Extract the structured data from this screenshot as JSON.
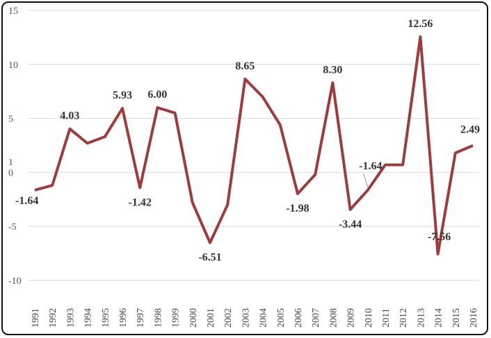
{
  "chart_data": {
    "type": "line",
    "title": "",
    "xlabel": "",
    "ylabel": "",
    "ylim": [
      -10,
      15
    ],
    "y_ticks": [
      "15",
      "10",
      "5",
      "1",
      "0",
      "-5",
      "-10"
    ],
    "grid": true,
    "legend": "none",
    "x": [
      "1991",
      "1992",
      "1993",
      "1994",
      "1995",
      "1996",
      "1997",
      "1998",
      "1999",
      "2000",
      "2001",
      "2002",
      "2003",
      "2004",
      "2005",
      "2006",
      "2007",
      "2008",
      "2009",
      "2010",
      "2011",
      "2012",
      "2013",
      "2014",
      "2015",
      "2016"
    ],
    "series": [
      {
        "values": [
          -1.64,
          -1.2,
          4.03,
          2.7,
          3.3,
          5.93,
          -1.42,
          6.0,
          5.5,
          -2.8,
          -6.51,
          -3.0,
          8.65,
          7.0,
          4.4,
          -1.98,
          -0.2,
          8.3,
          -3.44,
          -1.64,
          0.7,
          0.7,
          12.56,
          -7.56,
          1.8,
          2.49
        ],
        "color": "#9e3b3b"
      }
    ],
    "data_labels": [
      {
        "index": 0,
        "text": "-1.64"
      },
      {
        "index": 2,
        "text": "4.03"
      },
      {
        "index": 5,
        "text": "5.93"
      },
      {
        "index": 6,
        "text": "-1.42"
      },
      {
        "index": 7,
        "text": "6.00"
      },
      {
        "index": 10,
        "text": "-6.51"
      },
      {
        "index": 12,
        "text": "8.65"
      },
      {
        "index": 15,
        "text": "-1.98"
      },
      {
        "index": 17,
        "text": "8.30"
      },
      {
        "index": 18,
        "text": "-3.44"
      },
      {
        "index": 19,
        "text": "-1.64"
      },
      {
        "index": 22,
        "text": "12.56"
      },
      {
        "index": 23,
        "text": "-7.56"
      },
      {
        "index": 25,
        "text": "2.49"
      }
    ]
  }
}
